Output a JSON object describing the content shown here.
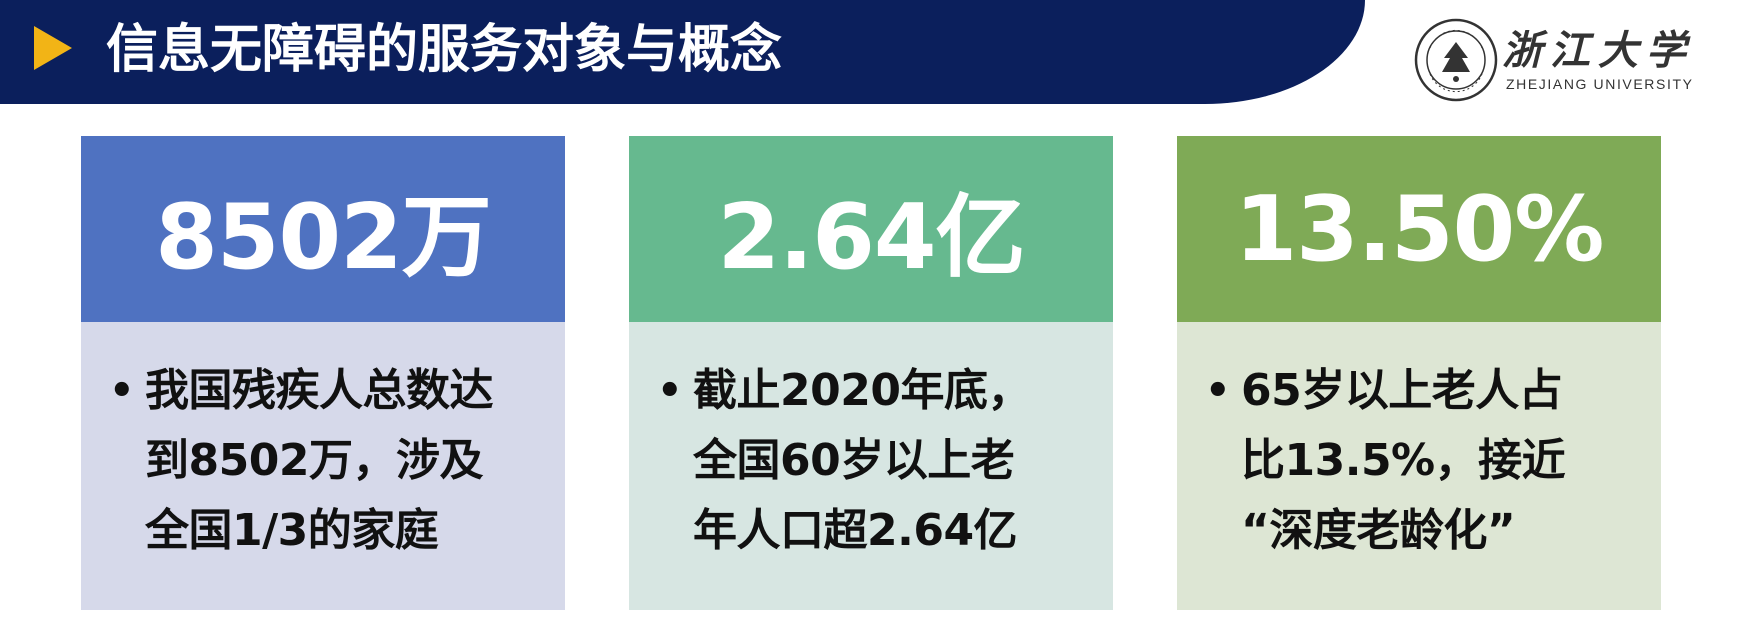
{
  "header": {
    "title": "信息无障碍的服务对象与概念",
    "colors": {
      "bar": "#0b1f5c",
      "arrow": "#f2b416"
    },
    "arrow_icon": "play-triangle-icon"
  },
  "logo": {
    "name_cn": "浙江大学",
    "name_en": "ZHEJIANG UNIVERSITY",
    "seal_icon": "zju-seal-icon"
  },
  "cards": [
    {
      "stat": "8502万",
      "bullet": "•",
      "lines": [
        "我国残疾人总数达",
        "到8502万，涉及",
        "全国1/3的家庭"
      ],
      "colors": {
        "top": "#4f72c1",
        "bottom": "#d6d9ea"
      }
    },
    {
      "stat": "2.64亿",
      "bullet": "•",
      "lines": [
        "截止2020年底，",
        "全国60岁以上老",
        "年人口超2.64亿"
      ],
      "colors": {
        "top": "#66b98f",
        "bottom": "#d7e6e2"
      }
    },
    {
      "stat": "13.50%",
      "bullet": "•",
      "lines": [
        "65岁以上老人占",
        "比13.5%，接近",
        "“深度老龄化”"
      ],
      "colors": {
        "top": "#7faa56",
        "bottom": "#dde6d4"
      }
    }
  ]
}
